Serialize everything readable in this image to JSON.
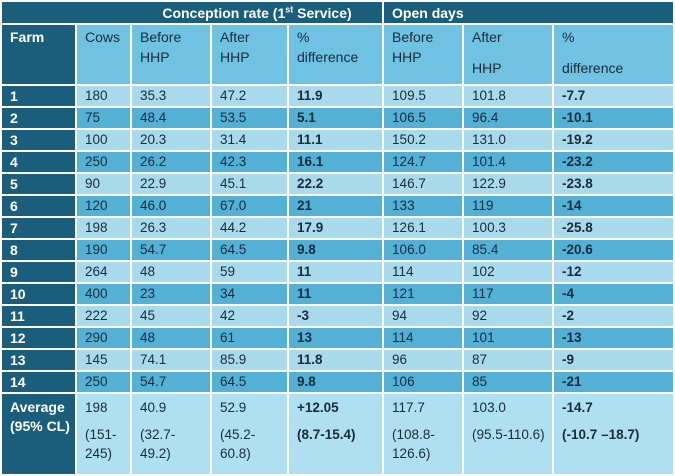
{
  "colors": {
    "header_dark": "#1B5E7C",
    "header_light": "#6FC2E1",
    "row_light": "#A9DAEB",
    "row_band": "#54B1D6",
    "avg_light": "#AEE0F1",
    "grid_white": "#FFFFFF",
    "text_dark": "#1B2B38",
    "text_light": "#FFFFFF"
  },
  "table": {
    "group_header": {
      "conception": {
        "pre": "Conception rate (1",
        "sup": "st",
        "post": " Service)"
      },
      "open_days": "Open days"
    },
    "column_headers": [
      {
        "id": "farm",
        "line1": "Farm",
        "line2": "",
        "gap": false
      },
      {
        "id": "cows",
        "line1": "Cows",
        "line2": "",
        "gap": false
      },
      {
        "id": "cr-before",
        "line1": "Before",
        "line2": "HHP",
        "gap": false
      },
      {
        "id": "cr-after",
        "line1": "After",
        "line2": "HHP",
        "gap": false
      },
      {
        "id": "cr-diff",
        "line1": "%",
        "line2": "difference",
        "gap": false
      },
      {
        "id": "od-before",
        "line1": "Before",
        "line2": "HHP",
        "gap": false
      },
      {
        "id": "od-after",
        "line1": "After",
        "line2": "HHP",
        "gap": true
      },
      {
        "id": "od-diff",
        "line1": "%",
        "line2": "difference",
        "gap": true
      }
    ],
    "rows": [
      {
        "farm": "1",
        "cows": "180",
        "cr_before": "35.3",
        "cr_after": "47.2",
        "cr_diff": "11.9",
        "od_before": "109.5",
        "od_after": "101.8",
        "od_diff": "-7.7"
      },
      {
        "farm": "2",
        "cows": "75",
        "cr_before": "48.4",
        "cr_after": "53.5",
        "cr_diff": "5.1",
        "od_before": "106.5",
        "od_after": "96.4",
        "od_diff": "-10.1"
      },
      {
        "farm": "3",
        "cows": "100",
        "cr_before": "20.3",
        "cr_after": "31.4",
        "cr_diff": "11.1",
        "od_before": "150.2",
        "od_after": "131.0",
        "od_diff": "-19.2"
      },
      {
        "farm": "4",
        "cows": "250",
        "cr_before": "26.2",
        "cr_after": "42.3",
        "cr_diff": "16.1",
        "od_before": "124.7",
        "od_after": "101.4",
        "od_diff": "-23.2"
      },
      {
        "farm": "5",
        "cows": "90",
        "cr_before": "22.9",
        "cr_after": "45.1",
        "cr_diff": "22.2",
        "od_before": "146.7",
        "od_after": "122.9",
        "od_diff": "-23.8"
      },
      {
        "farm": "6",
        "cows": "120",
        "cr_before": "46.0",
        "cr_after": "67.0",
        "cr_diff": "21",
        "od_before": "133",
        "od_after": "119",
        "od_diff": "-14"
      },
      {
        "farm": "7",
        "cows": "198",
        "cr_before": "26.3",
        "cr_after": "44.2",
        "cr_diff": "17.9",
        "od_before": "126.1",
        "od_after": "100.3",
        "od_diff": "-25.8"
      },
      {
        "farm": "8",
        "cows": "190",
        "cr_before": "54.7",
        "cr_after": "64.5",
        "cr_diff": "9.8",
        "od_before": "106.0",
        "od_after": "85.4",
        "od_diff": "-20.6"
      },
      {
        "farm": "9",
        "cows": "264",
        "cr_before": "48",
        "cr_after": "59",
        "cr_diff": "11",
        "od_before": "114",
        "od_after": "102",
        "od_diff": "-12"
      },
      {
        "farm": "10",
        "cows": "400",
        "cr_before": "23",
        "cr_after": "34",
        "cr_diff": "11",
        "od_before": "121",
        "od_after": "117",
        "od_diff": "-4"
      },
      {
        "farm": "11",
        "cows": "222",
        "cr_before": "45",
        "cr_after": "42",
        "cr_diff": "-3",
        "od_before": "94",
        "od_after": "92",
        "od_diff": "-2"
      },
      {
        "farm": "12",
        "cows": "290",
        "cr_before": "48",
        "cr_after": "61",
        "cr_diff": "13",
        "od_before": "114",
        "od_after": "101",
        "od_diff": "-13"
      },
      {
        "farm": "13",
        "cows": "145",
        "cr_before": "74.1",
        "cr_after": "85.9",
        "cr_diff": "11.8",
        "od_before": "96",
        "od_after": "87",
        "od_diff": "-9"
      },
      {
        "farm": "14",
        "cows": "250",
        "cr_before": "54.7",
        "cr_after": "64.5",
        "cr_diff": "9.8",
        "od_before": "106",
        "od_after": "85",
        "od_diff": "-21"
      }
    ],
    "average_row": {
      "farm_label": "Average (95% CL)",
      "cells": [
        {
          "id": "cows",
          "value": "198",
          "ci": "(151-245)",
          "bold": false
        },
        {
          "id": "cr-before",
          "value": "40.9",
          "ci": "(32.7-49.2)",
          "bold": false
        },
        {
          "id": "cr-after",
          "value": "52.9",
          "ci": "(45.2-60.8)",
          "bold": false
        },
        {
          "id": "cr-diff",
          "value": "+12.05",
          "ci": "(8.7-15.4)",
          "bold": true
        },
        {
          "id": "od-before",
          "value": "117.7",
          "ci": "(108.8-126.6)",
          "bold": false
        },
        {
          "id": "od-after",
          "value": "103.0",
          "ci": "(95.5-110.6)",
          "bold": false
        },
        {
          "id": "od-diff",
          "value": "-14.7",
          "ci": "(-10.7 –18.7)",
          "bold": true
        }
      ]
    }
  }
}
